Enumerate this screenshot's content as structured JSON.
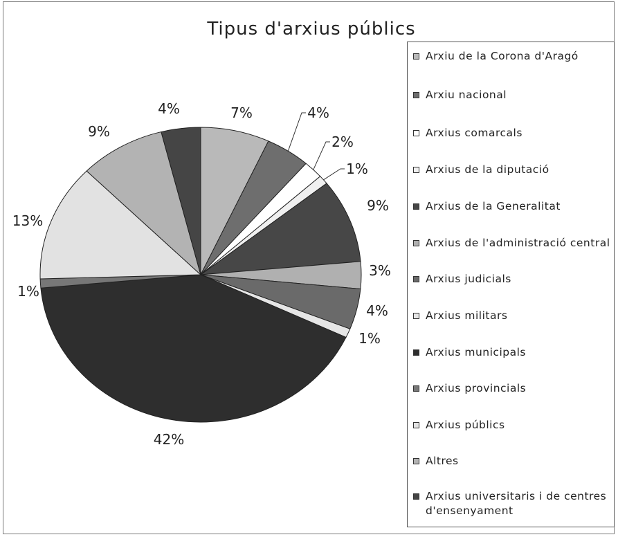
{
  "chart_data": {
    "type": "pie",
    "title": "Tipus d'arxius públics",
    "legend_position": "right",
    "slices": [
      {
        "label": "Arxiu de la Corona d'Aragó",
        "value": 7,
        "display": "7%",
        "color": "#b9b9b9"
      },
      {
        "label": "Arxiu nacional",
        "value": 4.5,
        "display": "4%",
        "color": "#6e6e6e"
      },
      {
        "label": "Arxius comarcals",
        "value": 2,
        "display": "2%",
        "color": "#ffffff"
      },
      {
        "label": "Arxius de la diputació",
        "value": 1,
        "display": "1%",
        "color": "#f0f0f0"
      },
      {
        "label": "Arxius de la Generalitat",
        "value": 9.3,
        "display": "9%",
        "color": "#474747"
      },
      {
        "label": "Arxius de l'administració central",
        "value": 3,
        "display": "3%",
        "color": "#b0b0b0"
      },
      {
        "label": "Arxius judicials",
        "value": 4.5,
        "display": "4%",
        "color": "#6a6a6a"
      },
      {
        "label": "Arxius militars",
        "value": 1,
        "display": "1%",
        "color": "#e6e6e6"
      },
      {
        "label": "Arxius municipals",
        "value": 42,
        "display": "42%",
        "color": "#2e2e2e"
      },
      {
        "label": "Arxius provincials",
        "value": 1,
        "display": "1%",
        "color": "#777777"
      },
      {
        "label": "Arxius públics",
        "value": 13,
        "display": "13%",
        "color": "#e2e2e2"
      },
      {
        "label": "Altres",
        "value": 8.7,
        "display": "9%",
        "color": "#b3b3b3"
      },
      {
        "label": "Arxius universitaris i de centres d'ensenyament",
        "value": 4,
        "display": "4%",
        "color": "#454545"
      }
    ]
  }
}
